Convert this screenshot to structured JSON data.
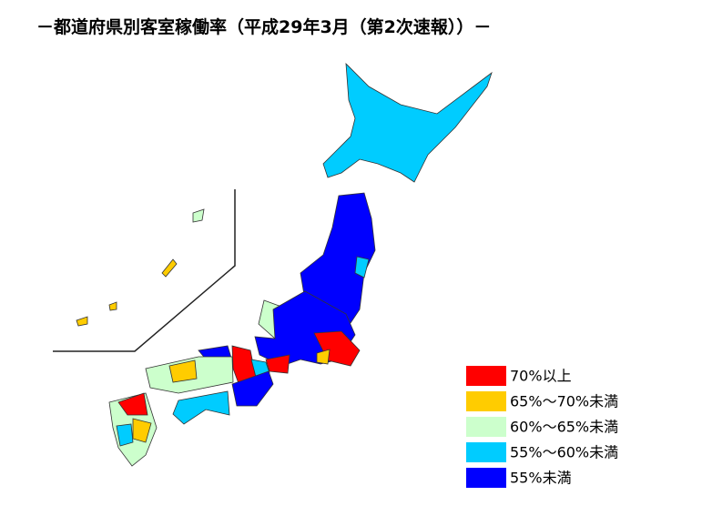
{
  "title": "－都道府県別客室稼働率（平成29年3月（第2次速報））－",
  "legend": [
    {
      "label": "70%以上",
      "color": "#ff0000"
    },
    {
      "label": "65%～70%未満",
      "color": "#ffcc00"
    },
    {
      "label": "60%～65%未満",
      "color": "#ccffcc"
    },
    {
      "label": "55%～60%未満",
      "color": "#00ccff"
    },
    {
      "label": "55%未満",
      "color": "#0000ff"
    }
  ]
}
